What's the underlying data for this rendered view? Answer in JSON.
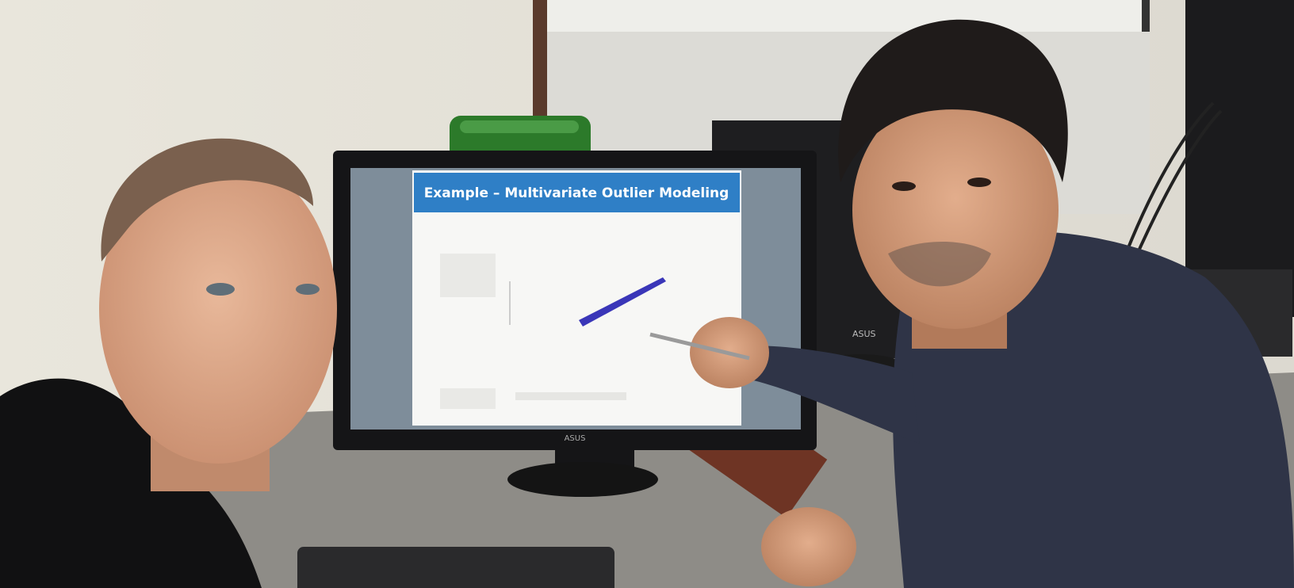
{
  "screen": {
    "slide_title": "Example – Multivariate Outlier Modeling"
  },
  "monitor_labels": [
    "ASUS",
    "ASUS"
  ]
}
